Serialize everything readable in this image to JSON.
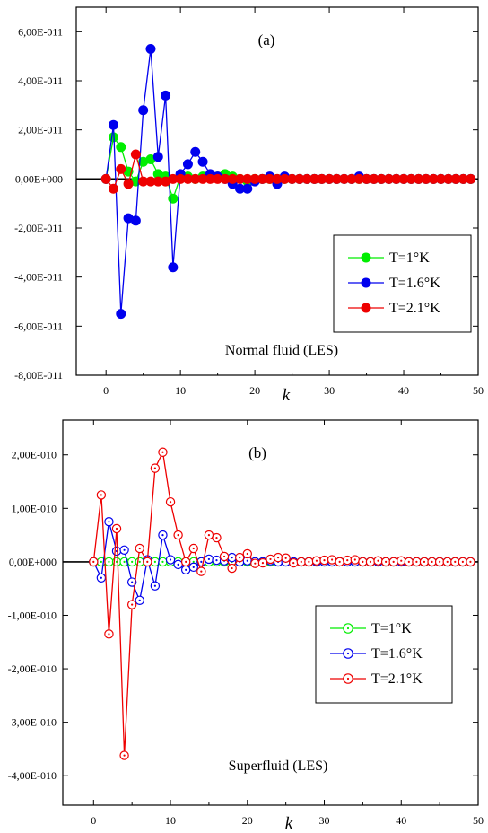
{
  "chart_data": [
    {
      "type": "line",
      "panel_label": "(a)",
      "annotation": "Normal fluid (LES)",
      "xlabel": "k",
      "marker": "filled-circle",
      "xlim": [
        -4,
        50
      ],
      "ylim": [
        -8e-11,
        7e-11
      ],
      "x_ticks": [
        0,
        10,
        20,
        30,
        40,
        50
      ],
      "x_tick_labels": [
        "0",
        "10",
        "20",
        "30",
        "40",
        "50"
      ],
      "y_ticks": [
        6e-11,
        4e-11,
        2e-11,
        0,
        -2e-11,
        -4e-11,
        -6e-11,
        -8e-11
      ],
      "y_tick_labels": [
        "6,00E-011",
        "4,00E-011",
        "2,00E-011",
        "0,00E+000",
        "-2,00E-011",
        "-4,00E-011",
        "-6,00E-011",
        "-8,00E-011"
      ],
      "legend_position": "lower-right",
      "series": [
        {
          "name": "T=1°K",
          "color": "#00ee00",
          "x": [
            0,
            1,
            2,
            3,
            4,
            5,
            6,
            7,
            8,
            9,
            10,
            11,
            12,
            13,
            14,
            15,
            16,
            17,
            18,
            19,
            20,
            21,
            22,
            23,
            24,
            25,
            26,
            27,
            28,
            29,
            30,
            31,
            32,
            33,
            34,
            35,
            36,
            37,
            38,
            39,
            40,
            41,
            42,
            43,
            44,
            45,
            46,
            47,
            48,
            49
          ],
          "y": [
            0,
            1.7e-11,
            1.3e-11,
            3e-12,
            -1e-12,
            7e-12,
            8e-12,
            2e-12,
            1e-12,
            -8e-12,
            1e-12,
            1e-12,
            0,
            1e-12,
            1e-12,
            1e-12,
            2e-12,
            1e-12,
            0,
            -1e-12,
            0,
            0,
            0,
            0,
            0,
            0,
            0,
            0,
            0,
            0,
            0,
            0,
            0,
            0,
            0,
            0,
            0,
            0,
            0,
            0,
            0,
            0,
            0,
            0,
            0,
            0,
            0,
            0,
            0,
            0
          ]
        },
        {
          "name": "T=1.6°K",
          "color": "#0000ee",
          "x": [
            0,
            1,
            2,
            3,
            4,
            5,
            6,
            7,
            8,
            9,
            10,
            11,
            12,
            13,
            14,
            15,
            16,
            17,
            18,
            19,
            20,
            21,
            22,
            23,
            24,
            25,
            26,
            27,
            28,
            29,
            30,
            31,
            32,
            33,
            34,
            35,
            36,
            37,
            38,
            39,
            40,
            41,
            42,
            43,
            44,
            45,
            46,
            47,
            48,
            49
          ],
          "y": [
            0,
            2.2e-11,
            -5.5e-11,
            -1.6e-11,
            -1.7e-11,
            2.8e-11,
            5.3e-11,
            9e-12,
            3.4e-11,
            -3.6e-11,
            2e-12,
            6e-12,
            1.1e-11,
            7e-12,
            2e-12,
            1e-12,
            0,
            -2e-12,
            -4e-12,
            -4e-12,
            -1e-12,
            0,
            1e-12,
            -2e-12,
            1e-12,
            0,
            0,
            0,
            0,
            0,
            0,
            0,
            0,
            0,
            1e-12,
            0,
            0,
            0,
            0,
            0,
            0,
            0,
            0,
            0,
            0,
            0,
            0,
            0,
            0,
            0
          ]
        },
        {
          "name": "T=2.1°K",
          "color": "#ee0000",
          "x": [
            0,
            1,
            2,
            3,
            4,
            5,
            6,
            7,
            8,
            9,
            10,
            11,
            12,
            13,
            14,
            15,
            16,
            17,
            18,
            19,
            20,
            21,
            22,
            23,
            24,
            25,
            26,
            27,
            28,
            29,
            30,
            31,
            32,
            33,
            34,
            35,
            36,
            37,
            38,
            39,
            40,
            41,
            42,
            43,
            44,
            45,
            46,
            47,
            48,
            49
          ],
          "y": [
            0,
            -4e-12,
            4e-12,
            -2e-12,
            1e-11,
            -1e-12,
            -1e-12,
            -1e-12,
            -1e-12,
            0,
            0,
            0,
            0,
            0,
            0,
            0,
            0,
            0,
            0,
            0,
            0,
            0,
            0,
            0,
            0,
            0,
            0,
            0,
            0,
            0,
            0,
            0,
            0,
            0,
            0,
            0,
            0,
            0,
            0,
            0,
            0,
            0,
            0,
            0,
            0,
            0,
            0,
            0,
            0,
            0
          ]
        }
      ]
    },
    {
      "type": "line",
      "panel_label": "(b)",
      "annotation": "Superfluid (LES)",
      "xlabel": "k",
      "marker": "open-circle-dot",
      "xlim": [
        -4,
        50
      ],
      "ylim": [
        -4.55e-10,
        2.65e-10
      ],
      "x_ticks": [
        0,
        10,
        20,
        30,
        40,
        50
      ],
      "x_tick_labels": [
        "0",
        "10",
        "20",
        "30",
        "40",
        "50"
      ],
      "y_ticks": [
        2e-10,
        1e-10,
        0,
        -1e-10,
        -2e-10,
        -3e-10,
        -4e-10
      ],
      "y_tick_labels": [
        "2,00E-010",
        "1,00E-010",
        "0,00E+000",
        "-1,00E-010",
        "-2,00E-010",
        "-3,00E-010",
        "-4,00E-010"
      ],
      "legend_position": "lower-right",
      "series": [
        {
          "name": "T=1°K",
          "color": "#00ee00",
          "x": [
            0,
            1,
            2,
            3,
            4,
            5,
            6,
            7,
            8,
            9,
            10,
            11,
            12,
            13,
            14,
            15,
            16,
            17,
            18,
            19,
            20,
            21,
            22,
            23,
            24,
            25,
            26,
            27,
            28,
            29,
            30,
            31,
            32,
            33,
            34,
            35,
            36,
            37,
            38,
            39,
            40,
            41,
            42,
            43,
            44,
            45,
            46,
            47,
            48,
            49
          ],
          "y": [
            0,
            0,
            0,
            0,
            0,
            0,
            0,
            0,
            0,
            0,
            0,
            0,
            0,
            0,
            0,
            0,
            0,
            0,
            0,
            0,
            0,
            0,
            0,
            0,
            0,
            0,
            0,
            0,
            0,
            0,
            0,
            0,
            0,
            0,
            0,
            0,
            0,
            0,
            0,
            0,
            0,
            0,
            0,
            0,
            0,
            0,
            0,
            0,
            0,
            0
          ]
        },
        {
          "name": "T=1.6°K",
          "color": "#0000ee",
          "x": [
            0,
            1,
            2,
            3,
            4,
            5,
            6,
            7,
            8,
            9,
            10,
            11,
            12,
            13,
            14,
            15,
            16,
            17,
            18,
            19,
            20,
            21,
            22,
            23,
            24,
            25,
            26,
            27,
            28,
            29,
            30,
            31,
            32,
            33,
            34,
            35,
            36,
            37,
            38,
            39,
            40,
            41,
            42,
            43,
            44,
            45,
            46,
            47,
            48,
            49
          ],
          "y": [
            0,
            -3e-11,
            7.5e-11,
            2e-11,
            2.2e-11,
            -3.8e-11,
            -7.2e-11,
            4e-12,
            -4.5e-11,
            5e-11,
            4e-12,
            -5e-12,
            -1.5e-11,
            -1e-11,
            0,
            5e-12,
            3e-12,
            2e-12,
            8e-12,
            0,
            2e-12,
            0,
            0,
            2e-12,
            0,
            0,
            0,
            0,
            0,
            0,
            0,
            0,
            0,
            0,
            0,
            0,
            0,
            0,
            0,
            0,
            0,
            0,
            0,
            0,
            0,
            0,
            0,
            0,
            0,
            0
          ]
        },
        {
          "name": "T=2.1°K",
          "color": "#ee0000",
          "x": [
            0,
            1,
            2,
            3,
            4,
            5,
            6,
            7,
            8,
            9,
            10,
            11,
            12,
            13,
            14,
            15,
            16,
            17,
            18,
            19,
            20,
            21,
            22,
            23,
            24,
            25,
            26,
            27,
            28,
            29,
            30,
            31,
            32,
            33,
            34,
            35,
            36,
            37,
            38,
            39,
            40,
            41,
            42,
            43,
            44,
            45,
            46,
            47,
            48,
            49
          ],
          "y": [
            0,
            1.25e-10,
            -1.35e-10,
            6.2e-11,
            -3.62e-10,
            -8e-11,
            2.5e-11,
            0,
            1.75e-10,
            2.05e-10,
            1.12e-10,
            5e-11,
            0,
            2.5e-11,
            -1.8e-11,
            5e-11,
            4.5e-11,
            1e-11,
            -1.2e-11,
            8e-12,
            1.5e-11,
            -3e-12,
            -2e-12,
            5e-12,
            8e-12,
            7e-12,
            -2e-12,
            0,
            0,
            2e-12,
            3e-12,
            4e-12,
            0,
            3e-12,
            4e-12,
            0,
            0,
            2e-12,
            0,
            0,
            2e-12,
            0,
            0,
            0,
            0,
            0,
            0,
            0,
            0,
            0
          ]
        }
      ]
    }
  ]
}
